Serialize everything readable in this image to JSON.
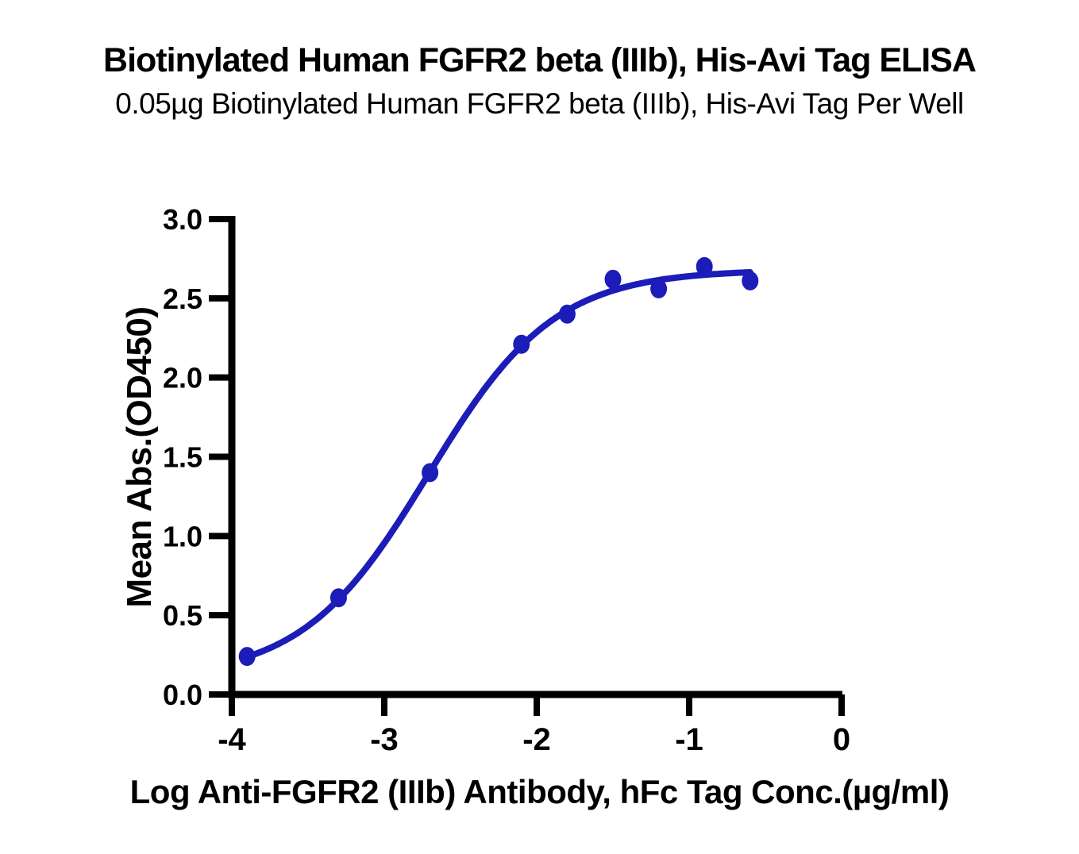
{
  "chart_data": {
    "type": "scatter",
    "title": "Biotinylated Human FGFR2 beta (IIIb), His-Avi Tag ELISA",
    "subtitle": "0.05µg Biotinylated Human FGFR2 beta (IIIb), His-Avi Tag Per Well",
    "xlabel": "Log Anti-FGFR2 (IIIb) Antibody, hFc Tag Conc.(µg/ml)",
    "ylabel": "Mean Abs.(OD450)",
    "xlim": [
      -4,
      0
    ],
    "ylim": [
      0,
      3
    ],
    "x_ticks": [
      -4,
      -3,
      -2,
      -1,
      0
    ],
    "x_tick_labels": [
      "-4",
      "-3",
      "-2",
      "-1",
      "0"
    ],
    "y_ticks": [
      0,
      0.5,
      1,
      1.5,
      2,
      2.5,
      3
    ],
    "y_tick_labels": [
      "0.0",
      "0.5",
      "1.0",
      "1.5",
      "2.0",
      "2.5",
      "3.0"
    ],
    "grid": false,
    "legend": "none",
    "points": [
      {
        "x": -3.9,
        "y": 0.24
      },
      {
        "x": -3.3,
        "y": 0.61
      },
      {
        "x": -2.7,
        "y": 1.4
      },
      {
        "x": -2.1,
        "y": 2.21
      },
      {
        "x": -1.8,
        "y": 2.4
      },
      {
        "x": -1.5,
        "y": 2.62
      },
      {
        "x": -1.2,
        "y": 2.56
      },
      {
        "x": -0.9,
        "y": 2.7
      },
      {
        "x": -0.6,
        "y": 2.61
      }
    ],
    "fit_curve": {
      "model": "4PL",
      "bottom": 0.1,
      "top": 2.68,
      "log_ec50": -2.71,
      "hill": 1.05,
      "x_start": -3.9,
      "x_end": -0.6
    },
    "colors": {
      "series": "#1C1CB8",
      "axis": "#000000",
      "text": "#000000",
      "background": "#FFFFFF"
    }
  }
}
